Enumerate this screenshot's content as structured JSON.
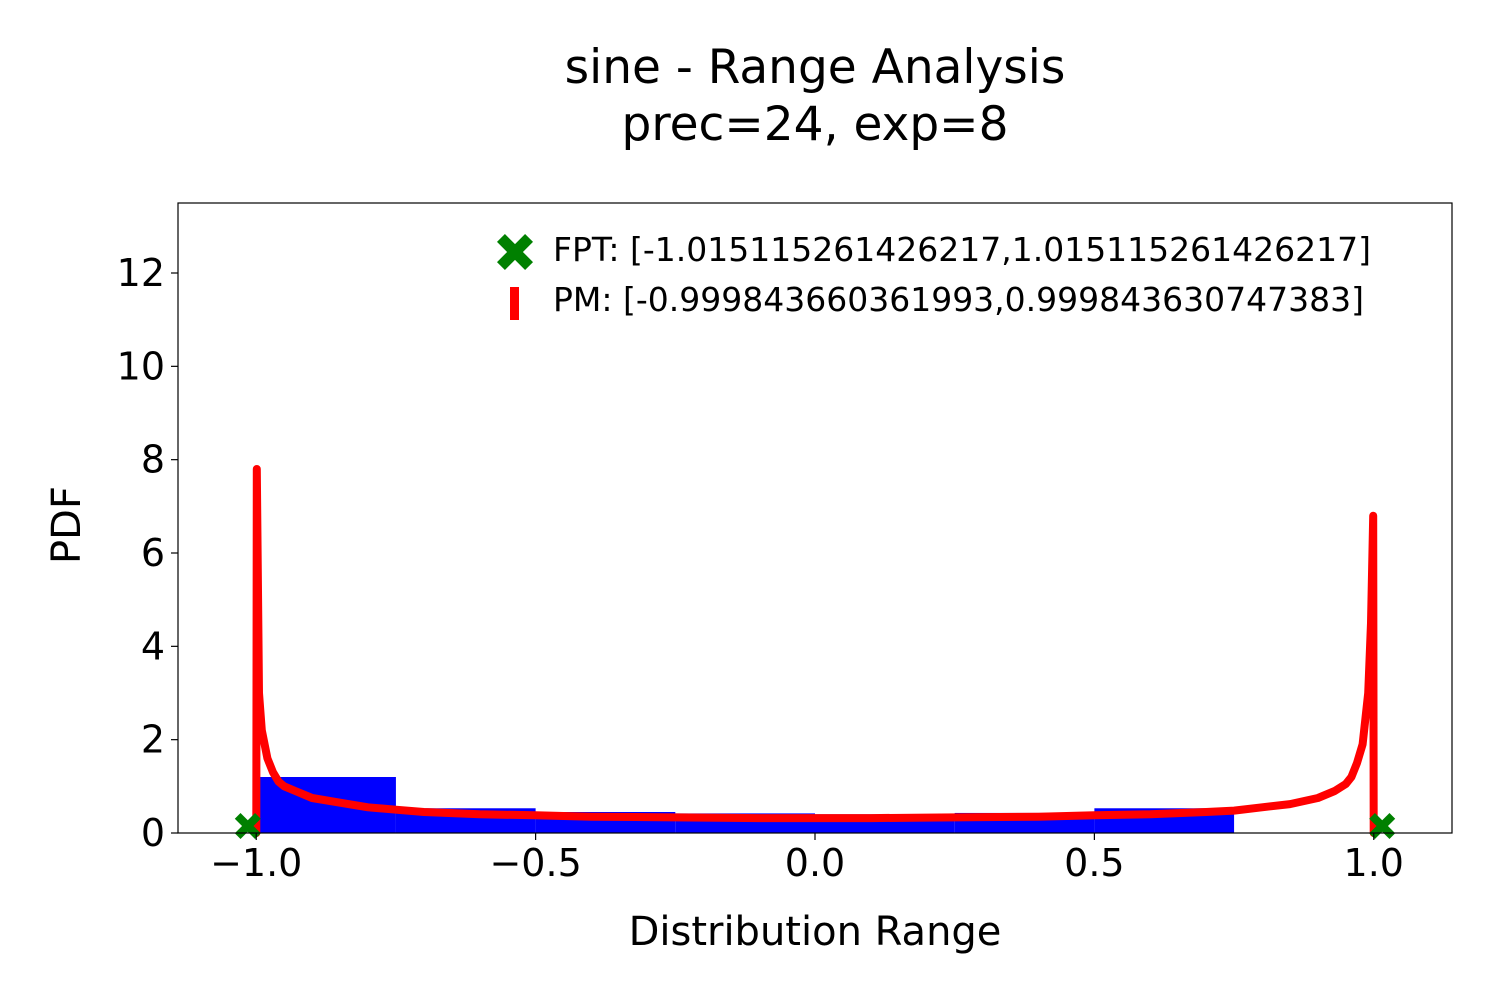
{
  "chart_data": {
    "type": "bar",
    "title": "sine - Range Analysis",
    "subtitle": "prec=24, exp=8",
    "xlabel": "Distribution Range",
    "ylabel": "PDF",
    "xlim": [
      -1.14,
      1.14
    ],
    "ylim": [
      0,
      13.5
    ],
    "xticks": [
      -1.0,
      -0.5,
      0.0,
      0.5,
      1.0
    ],
    "xtick_labels": [
      "−1.0",
      "−0.5",
      "0.0",
      "0.5",
      "1.0"
    ],
    "yticks": [
      0,
      2,
      4,
      6,
      8,
      10,
      12
    ],
    "ytick_labels": [
      "0",
      "2",
      "4",
      "6",
      "8",
      "10",
      "12"
    ],
    "grid": false,
    "legend_position": "top-right",
    "histogram": {
      "color": "#0000ff",
      "bin_edges": [
        -1.0,
        -0.75,
        -0.5,
        -0.25,
        0.0,
        0.25,
        0.5,
        0.75
      ],
      "values": [
        1.2,
        0.53,
        0.45,
        0.42,
        0.4,
        0.43,
        0.53
      ]
    },
    "series": [
      {
        "name": "FPT: [-1.015115261426217,1.015115261426217]",
        "type": "scatter",
        "marker": "X",
        "color": "#008000",
        "x": [
          -1.015115261426217,
          1.015115261426217
        ],
        "y": [
          0.15,
          0.15
        ]
      },
      {
        "name": "PM: [-0.999843660361993,0.999843630747383]",
        "type": "line",
        "color": "#ff0000",
        "x": [
          -0.9998,
          -0.999,
          -0.995,
          -0.99,
          -0.98,
          -0.97,
          -0.96,
          -0.95,
          -0.93,
          -0.9,
          -0.85,
          -0.8,
          -0.75,
          -0.7,
          -0.6,
          -0.5,
          -0.4,
          -0.3,
          -0.2,
          -0.1,
          0.0,
          0.1,
          0.2,
          0.3,
          0.4,
          0.5,
          0.6,
          0.7,
          0.75,
          0.8,
          0.85,
          0.9,
          0.93,
          0.95,
          0.96,
          0.97,
          0.98,
          0.99,
          0.995,
          0.999,
          0.9998
        ],
        "y": [
          0.0,
          7.8,
          3.0,
          2.2,
          1.6,
          1.3,
          1.1,
          1.0,
          0.9,
          0.75,
          0.65,
          0.55,
          0.5,
          0.45,
          0.4,
          0.38,
          0.35,
          0.34,
          0.33,
          0.32,
          0.32,
          0.32,
          0.33,
          0.34,
          0.35,
          0.38,
          0.4,
          0.45,
          0.48,
          0.55,
          0.62,
          0.75,
          0.9,
          1.05,
          1.2,
          1.5,
          1.9,
          3.0,
          4.5,
          6.8,
          0.0
        ]
      }
    ]
  }
}
